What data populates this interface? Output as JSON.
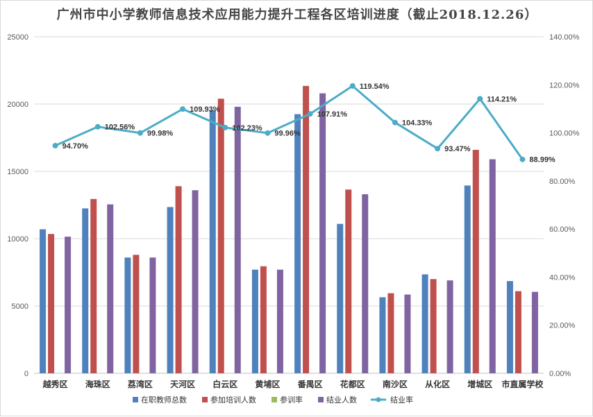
{
  "chart_data": {
    "type": "bar",
    "title": "广州市中小学教师信息技术应用能力提升工程各区培训进度（截止2018.12.26）",
    "categories": [
      "越秀区",
      "海珠区",
      "荔湾区",
      "天河区",
      "白云区",
      "黄埔区",
      "番禺区",
      "花都区",
      "南沙区",
      "从化区",
      "增城区",
      "市直属学校"
    ],
    "series": [
      {
        "name": "在职教师总数",
        "color": "#4f81bd",
        "axis": "left",
        "kind": "bar",
        "values": [
          10700,
          12250,
          8600,
          12350,
          19550,
          7700,
          19250,
          11100,
          5650,
          7350,
          13950,
          6850
        ]
      },
      {
        "name": "参加培训人数",
        "color": "#c0504d",
        "axis": "left",
        "kind": "bar",
        "values": [
          10350,
          12950,
          8800,
          13900,
          20400,
          7950,
          21350,
          13650,
          5950,
          7000,
          16600,
          6100
        ]
      },
      {
        "name": "参训率",
        "color": "#9bbb59",
        "axis": "left",
        "kind": "bar",
        "values": [
          0,
          0,
          0,
          0,
          0,
          0,
          0,
          0,
          0,
          0,
          0,
          0
        ]
      },
      {
        "name": "结业人数",
        "color": "#8064a2",
        "axis": "left",
        "kind": "bar",
        "values": [
          10150,
          12550,
          8600,
          13600,
          19800,
          7700,
          20800,
          13300,
          5850,
          6900,
          15900,
          6050
        ]
      },
      {
        "name": "结业率",
        "color": "#4bacc6",
        "axis": "right",
        "kind": "line",
        "values": [
          94.7,
          102.56,
          99.98,
          109.93,
          102.23,
          99.96,
          107.91,
          119.54,
          104.33,
          93.47,
          114.21,
          88.99
        ],
        "labels": [
          "94.70%",
          "102.56%",
          "99.98%",
          "109.93%",
          "102.23%",
          "99.96%",
          "107.91%",
          "119.54%",
          "104.33%",
          "93.47%",
          "114.21%",
          "88.99%"
        ]
      }
    ],
    "ylim_left": [
      0,
      25000
    ],
    "left_ticks": [
      "0",
      "5000",
      "10000",
      "15000",
      "20000",
      "25000"
    ],
    "ylim_right": [
      0,
      140
    ],
    "right_ticks": [
      "0.00%",
      "20.00%",
      "40.00%",
      "60.00%",
      "80.00%",
      "100.00%",
      "120.00%",
      "140.00%"
    ],
    "grid": true,
    "legend_position": "bottom"
  }
}
